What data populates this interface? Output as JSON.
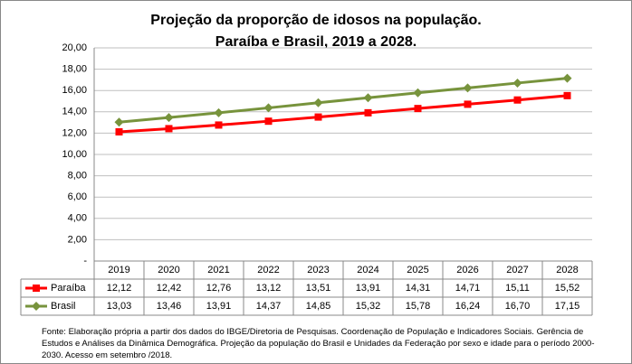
{
  "chart_data": {
    "type": "line",
    "title": "Projeção da proporção de idosos na população.",
    "subtitle": "Paraíba e Brasil, 2019 a 2028.",
    "categories": [
      "2019",
      "2020",
      "2021",
      "2022",
      "2023",
      "2024",
      "2025",
      "2026",
      "2027",
      "2028"
    ],
    "series": [
      {
        "name": "Paraíba",
        "color": "#ff0000",
        "marker": "square",
        "values": [
          12.12,
          12.42,
          12.76,
          13.12,
          13.51,
          13.91,
          14.31,
          14.71,
          15.11,
          15.52
        ],
        "value_labels": [
          "12,12",
          "12,42",
          "12,76",
          "13,12",
          "13,51",
          "13,91",
          "14,31",
          "14,71",
          "15,11",
          "15,52"
        ]
      },
      {
        "name": "Brasil",
        "color": "#77933c",
        "marker": "diamond",
        "values": [
          13.03,
          13.46,
          13.91,
          14.37,
          14.85,
          15.32,
          15.78,
          16.24,
          16.7,
          17.15
        ],
        "value_labels": [
          "13,03",
          "13,46",
          "13,91",
          "14,37",
          "14,85",
          "15,32",
          "15,78",
          "16,24",
          "16,70",
          "17,15"
        ]
      }
    ],
    "ylim": [
      0,
      20
    ],
    "yticks": [
      {
        "value": 0,
        "label": "-"
      },
      {
        "value": 2,
        "label": "2,00"
      },
      {
        "value": 4,
        "label": "4,00"
      },
      {
        "value": 6,
        "label": "6,00"
      },
      {
        "value": 8,
        "label": "8,00"
      },
      {
        "value": 10,
        "label": "10,00"
      },
      {
        "value": 12,
        "label": "12,00"
      },
      {
        "value": 14,
        "label": "14,00"
      },
      {
        "value": 16,
        "label": "16,00"
      },
      {
        "value": 18,
        "label": "18,00"
      },
      {
        "value": 20,
        "label": "20,00"
      }
    ],
    "grid": true,
    "note": "Fonte: Elaboração própria a partir dos dados do IBGE/Diretoria de Pesquisas. Coordenação de População e Indicadores Sociais. Gerência de Estudos e Análises da Dinâmica Demográfica. Projeção da população do Brasil e Unidades da Federação por sexo e idade para o período 2000-2030. Acesso em setembro /2018."
  }
}
